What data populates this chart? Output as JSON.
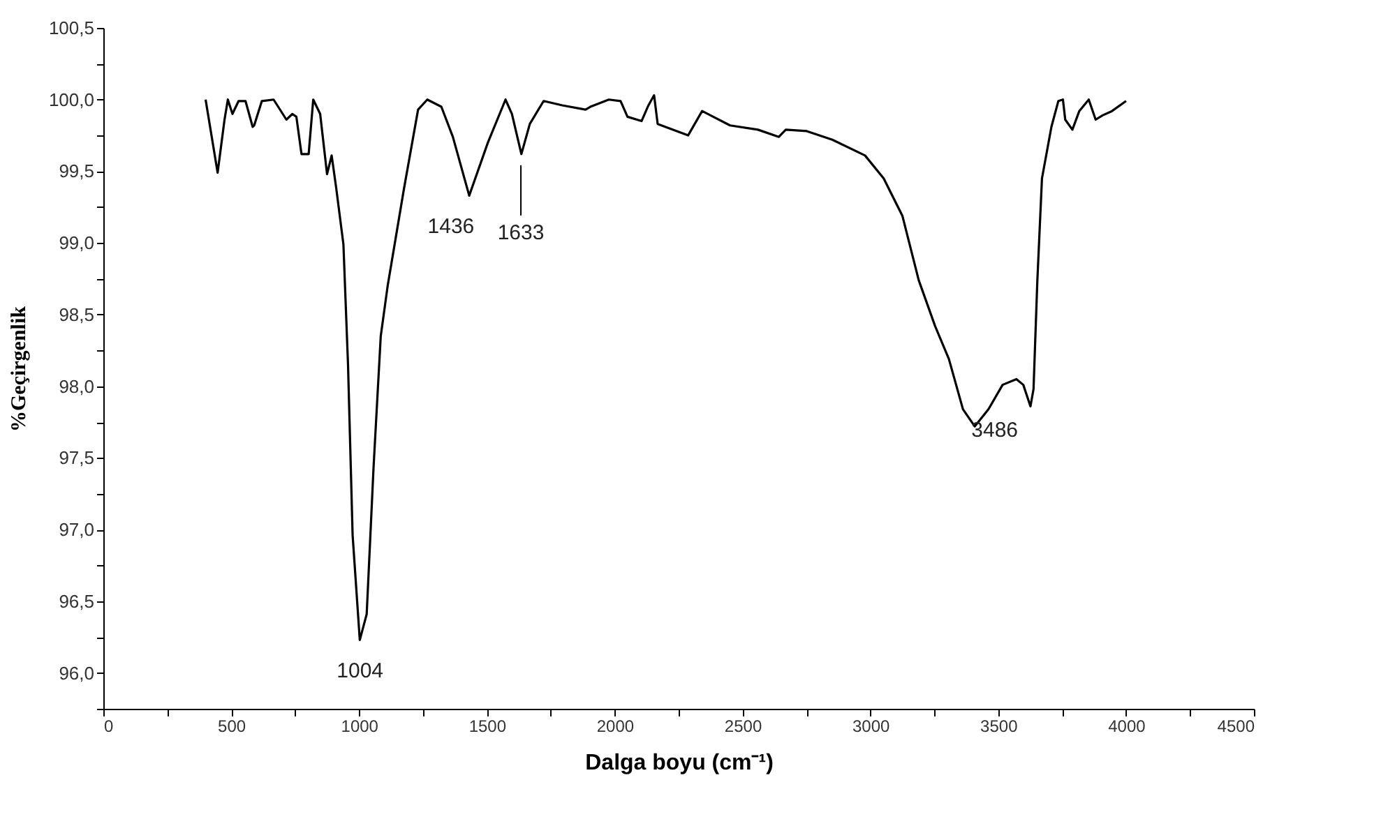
{
  "chart_data": {
    "type": "line",
    "xlabel": "Dalga boyu (cm⁻¹)",
    "ylabel": "%Geçirgenlik",
    "xlim": [
      0,
      4500
    ],
    "xticks": [
      0,
      {
        "value": 250,
        "label": null
      },
      500,
      {
        "value": 750,
        "label": null
      },
      1000,
      {
        "value": 1250,
        "label": null
      },
      1500,
      {
        "value": 1750,
        "label": null
      },
      2000,
      {
        "value": 2250,
        "label": null
      },
      2500,
      {
        "value": 2750,
        "label": null
      },
      3000,
      {
        "value": 3250,
        "label": null
      },
      3500,
      {
        "value": 3750,
        "label": null
      },
      4000,
      {
        "value": 4250,
        "label": null
      },
      4500
    ],
    "ylim": [
      95.75,
      100.5
    ],
    "yticks": [
      {
        "value": 95.75,
        "label": null
      },
      {
        "value": 96.0,
        "label": "96,0"
      },
      {
        "value": 96.25,
        "label": null
      },
      {
        "value": 96.5,
        "label": "96,5"
      },
      {
        "value": 96.75,
        "label": null
      },
      {
        "value": 97.0,
        "label": "97,0"
      },
      {
        "value": 97.25,
        "label": null
      },
      {
        "value": 97.5,
        "label": "97,5"
      },
      {
        "value": 97.75,
        "label": null
      },
      {
        "value": 98.0,
        "label": "98,0"
      },
      {
        "value": 98.25,
        "label": null
      },
      {
        "value": 98.5,
        "label": "98,5"
      },
      {
        "value": 98.75,
        "label": null
      },
      {
        "value": 99.0,
        "label": "99,0"
      },
      {
        "value": 99.25,
        "label": null
      },
      {
        "value": 99.5,
        "label": "99,5"
      },
      {
        "value": 99.75,
        "label": null
      },
      {
        "value": 100.0,
        "label": "100,0"
      },
      {
        "value": 100.25,
        "label": null
      },
      {
        "value": 100.5,
        "label": "100,5"
      }
    ],
    "grid": false,
    "marker": "none",
    "line_style": "solid",
    "series": [
      {
        "color": "#000000",
        "x": [
          400,
          447,
          474,
          487,
          505,
          529,
          556,
          584,
          590,
          620,
          666,
          716,
          739,
          755,
          775,
          803,
          821,
          848,
          875,
          893,
          911,
          939,
          957,
          975,
          1003,
          1030,
          1057,
          1085,
          1112,
          1176,
          1231,
          1267,
          1322,
          1367,
          1431,
          1504,
          1573,
          1598,
          1635,
          1668,
          1722,
          1795,
          1886,
          1905,
          1977,
          2023,
          2050,
          2105,
          2132,
          2154,
          2168,
          2287,
          2342,
          2451,
          2560,
          2642,
          2669,
          2751,
          2851,
          2979,
          3052,
          3125,
          3189,
          3253,
          3307,
          3362,
          3408,
          3462,
          3517,
          3571,
          3598,
          3626,
          3638,
          3653,
          3671,
          3708,
          3735,
          3753,
          3762,
          3790,
          3817,
          3854,
          3881,
          3908,
          3945,
          4000
        ],
        "values": [
          100.0,
          99.49,
          99.86,
          100.0,
          99.9,
          99.99,
          99.99,
          99.81,
          99.82,
          99.99,
          100.0,
          99.86,
          99.9,
          99.88,
          99.62,
          99.62,
          100.0,
          99.9,
          99.48,
          99.61,
          99.38,
          98.99,
          98.15,
          96.96,
          96.23,
          96.41,
          97.44,
          98.35,
          98.7,
          99.38,
          99.93,
          100.0,
          99.95,
          99.74,
          99.33,
          99.7,
          100.0,
          99.9,
          99.62,
          99.83,
          99.99,
          99.96,
          99.93,
          99.95,
          100.0,
          99.99,
          99.88,
          99.85,
          99.96,
          100.03,
          99.83,
          99.75,
          99.92,
          99.82,
          99.79,
          99.74,
          99.79,
          99.78,
          99.72,
          99.61,
          99.45,
          99.19,
          98.74,
          98.42,
          98.19,
          97.84,
          97.72,
          97.84,
          98.01,
          98.05,
          98.01,
          97.86,
          97.98,
          98.74,
          99.45,
          99.81,
          99.99,
          100.0,
          99.86,
          99.79,
          99.92,
          100.0,
          99.86,
          99.89,
          99.92,
          99.99
        ]
      }
    ],
    "annotations": [
      {
        "text": "1004",
        "x": 1004,
        "y": 96.23
      },
      {
        "text": "1436",
        "x": 1436,
        "y": 99.33
      },
      {
        "text": "1633",
        "x": 1633,
        "y": 99.62
      },
      {
        "text": "3486",
        "x": 3486,
        "y": 97.91
      }
    ]
  }
}
